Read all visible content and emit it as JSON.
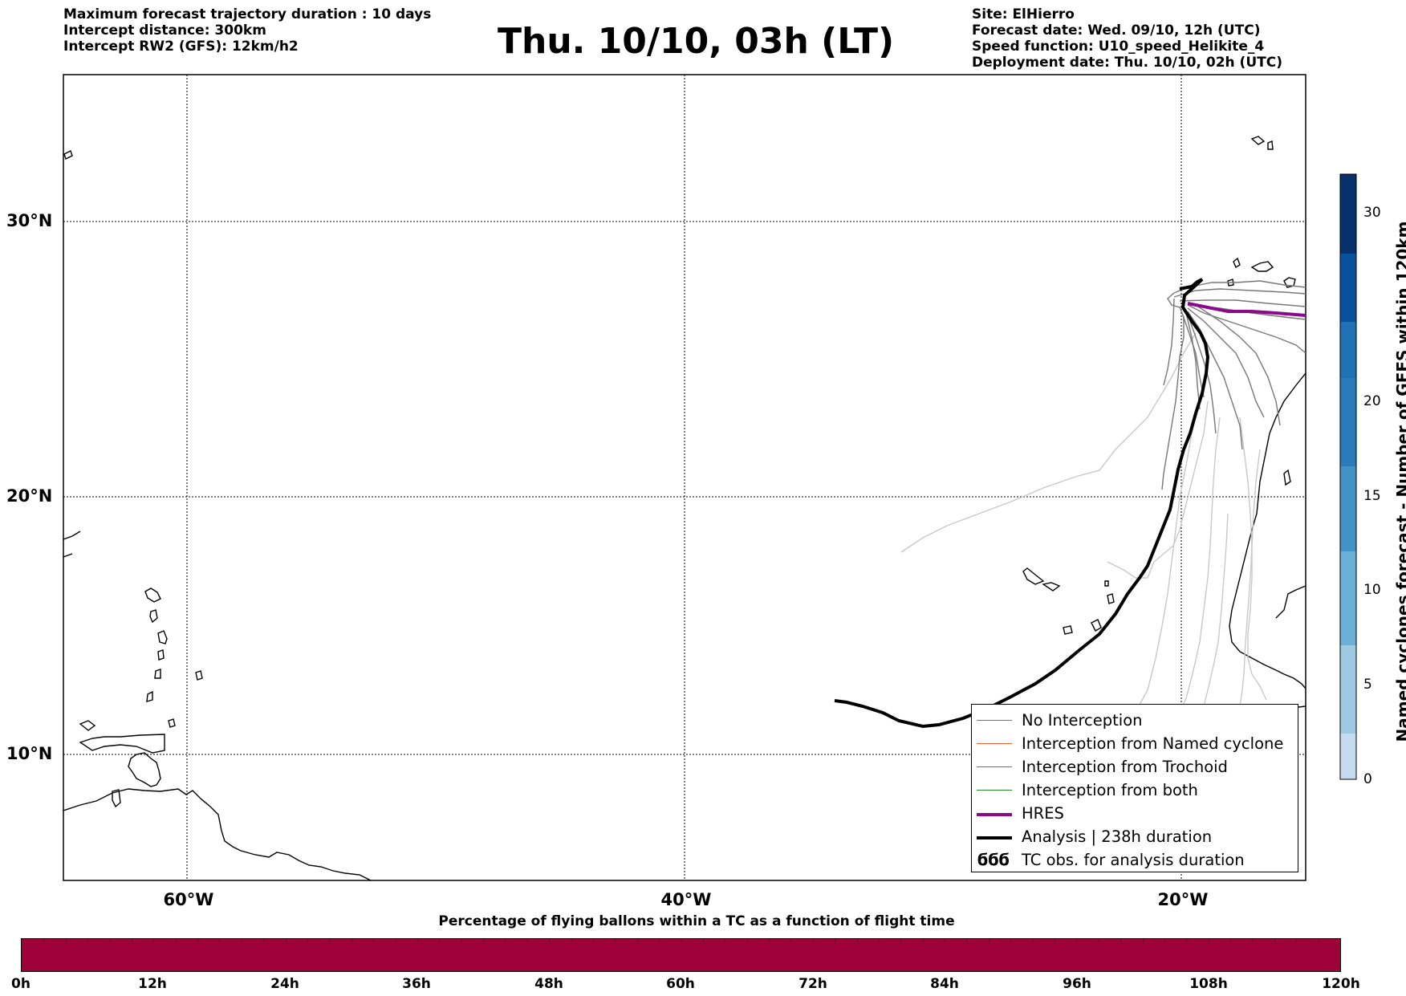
{
  "header": {
    "info_left": [
      "Maximum forecast trajectory duration : 10 days",
      "Intercept distance: 300km",
      "Intercept RW2 (GFS):  12km/h2"
    ],
    "title": "Thu. 10/10, 03h (LT)",
    "info_right": [
      "Site: ElHierro",
      "Forecast date: Wed. 09/10, 12h (UTC)",
      "Speed function: U10_speed_Helikite_4",
      "Deployment date: Thu. 10/10, 02h (UTC)"
    ]
  },
  "map": {
    "lat_labels": [
      "30°N",
      "20°N",
      "10°N"
    ],
    "lon_labels": [
      "60°W",
      "40°W",
      "20°W"
    ],
    "grid": true
  },
  "legend": {
    "position": "lower-right",
    "items": [
      {
        "label": "No Interception",
        "color": "#777777",
        "style": "thin"
      },
      {
        "label": "Interception from Named cyclone",
        "color": "#e8602c",
        "style": "thin"
      },
      {
        "label": "Interception from Trochoid",
        "color": "#7e7a22",
        "style": "thin"
      },
      {
        "label": "Interception from both",
        "color": "#2a8a2a",
        "style": "thin"
      },
      {
        "label": "HRES",
        "color": "#8b0a8b",
        "style": "thick"
      },
      {
        "label": "Analysis | 238h duration",
        "color": "#000000",
        "style": "thick"
      },
      {
        "label": "TC obs. for analysis duration",
        "color": "#000000",
        "style": "glyph",
        "glyph": "ϭϭϭ"
      }
    ]
  },
  "colorbar": {
    "label": "Named cyclones forecast - Number of GEFS within 120km",
    "ticks": [
      "0",
      "5",
      "10",
      "15",
      "20",
      "30"
    ],
    "colors": [
      "#dbe9f6",
      "#c6dbef",
      "#9ecae1",
      "#6baed6",
      "#4292c6",
      "#2171b5",
      "#08519c",
      "#08306b"
    ]
  },
  "bottom_bar": {
    "title": "Percentage of flying ballons within a TC as a function of flight time",
    "color": "#9e0038",
    "ticks": [
      "0h",
      "12h",
      "24h",
      "36h",
      "48h",
      "60h",
      "72h",
      "84h",
      "96h",
      "108h",
      "120h"
    ]
  }
}
